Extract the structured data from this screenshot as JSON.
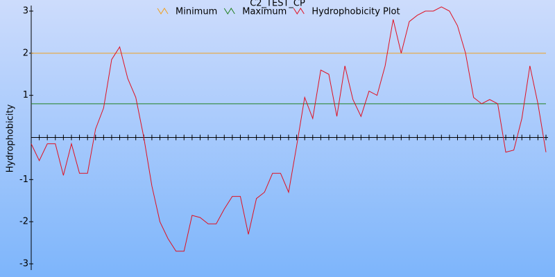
{
  "chart_data": {
    "type": "line",
    "title": "C2_TEST_CP",
    "y_label": "Hydrophobicity",
    "categories": [
      null,
      null,
      null,
      null,
      null,
      null,
      null,
      null,
      null,
      null,
      null,
      null,
      null,
      null,
      null,
      null,
      null,
      null,
      null,
      null,
      null,
      null,
      null,
      null,
      null,
      null,
      null,
      null,
      null,
      null,
      null,
      null,
      null,
      null,
      null,
      null,
      null,
      null,
      null,
      null,
      null,
      null,
      null,
      null,
      null,
      null,
      null,
      null,
      null,
      null,
      null,
      null,
      null,
      null,
      null,
      null,
      null,
      null,
      null,
      null,
      null,
      null,
      null,
      null,
      null
    ],
    "series": [
      {
        "name": "Minimum",
        "color": "#f0a020",
        "values": [
          2,
          2,
          2,
          2,
          2,
          2,
          2,
          2,
          2,
          2,
          2,
          2,
          2,
          2,
          2,
          2,
          2,
          2,
          2,
          2,
          2,
          2,
          2,
          2,
          2,
          2,
          2,
          2,
          2,
          2,
          2,
          2,
          2,
          2,
          2,
          2,
          2,
          2,
          2,
          2,
          2,
          2,
          2,
          2,
          2,
          2,
          2,
          2,
          2,
          2,
          2,
          2,
          2,
          2,
          2,
          2,
          2,
          2,
          2,
          2,
          2,
          2,
          2,
          2,
          2
        ]
      },
      {
        "name": "Maximum",
        "color": "#208020",
        "values": [
          0.8,
          0.8,
          0.8,
          0.8,
          0.8,
          0.8,
          0.8,
          0.8,
          0.8,
          0.8,
          0.8,
          0.8,
          0.8,
          0.8,
          0.8,
          0.8,
          0.8,
          0.8,
          0.8,
          0.8,
          0.8,
          0.8,
          0.8,
          0.8,
          0.8,
          0.8,
          0.8,
          0.8,
          0.8,
          0.8,
          0.8,
          0.8,
          0.8,
          0.8,
          0.8,
          0.8,
          0.8,
          0.8,
          0.8,
          0.8,
          0.8,
          0.8,
          0.8,
          0.8,
          0.8,
          0.8,
          0.8,
          0.8,
          0.8,
          0.8,
          0.8,
          0.8,
          0.8,
          0.8,
          0.8,
          0.8,
          0.8,
          0.8,
          0.8,
          0.8,
          0.8,
          0.8,
          0.8,
          0.8,
          0.8
        ]
      },
      {
        "name": "Hydrophobicity Plot",
        "color": "#e01020",
        "values": [
          -0.15,
          -0.55,
          -0.15,
          -0.15,
          -0.9,
          -0.15,
          -0.85,
          -0.85,
          0.2,
          0.7,
          1.85,
          2.15,
          1.4,
          0.95,
          0,
          -1.15,
          -2.0,
          -2.4,
          -2.7,
          -2.7,
          -1.85,
          -1.9,
          -2.05,
          -2.05,
          -1.7,
          -1.4,
          -1.4,
          -2.3,
          -1.45,
          -1.3,
          -0.85,
          -0.85,
          -1.3,
          -0.2,
          0.95,
          0.45,
          1.6,
          1.5,
          0.5,
          1.7,
          0.9,
          0.5,
          1.1,
          1.0,
          1.7,
          2.8,
          2.0,
          2.75,
          2.9,
          3.0,
          3.0,
          3.1,
          3.0,
          2.65,
          2.0,
          0.95,
          0.8,
          0.9,
          0.8,
          -0.35,
          -0.3,
          0.45,
          1.7,
          0.8,
          -0.35
        ]
      }
    ],
    "ylim": [
      -3,
      3
    ],
    "yticks": [
      -3,
      -2,
      -1,
      1,
      2,
      3
    ],
    "zero_line": true
  }
}
